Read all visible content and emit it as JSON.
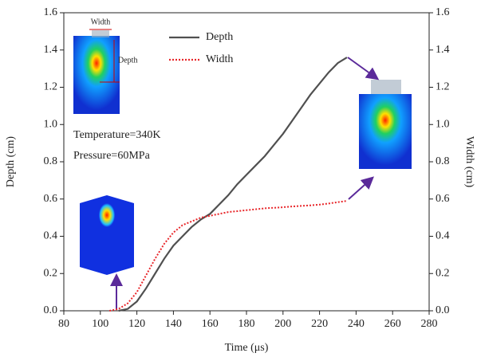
{
  "chart_data": {
    "type": "line",
    "xlabel": "Time (μs)",
    "ylabel": "Depth (cm)",
    "y2label": "Width (cm)",
    "x": [
      105,
      110,
      115,
      120,
      125,
      130,
      135,
      140,
      145,
      150,
      155,
      160,
      165,
      170,
      175,
      180,
      185,
      190,
      195,
      200,
      205,
      210,
      215,
      220,
      225,
      230,
      235
    ],
    "series": [
      {
        "name": "Depth",
        "color": "#505050",
        "style": "solid",
        "values": [
          null,
          0,
          0.01,
          0.05,
          0.12,
          0.2,
          0.28,
          0.35,
          0.4,
          0.45,
          0.49,
          0.52,
          0.57,
          0.62,
          0.68,
          0.73,
          0.78,
          0.83,
          0.89,
          0.95,
          1.02,
          1.09,
          1.16,
          1.22,
          1.28,
          1.33,
          1.36
        ]
      },
      {
        "name": "Width",
        "color": "#e8262a",
        "style": "dotted",
        "axis": "y2",
        "values": [
          0,
          0.01,
          0.04,
          0.1,
          0.19,
          0.28,
          0.36,
          0.42,
          0.46,
          0.48,
          0.5,
          0.51,
          0.52,
          0.53,
          0.535,
          0.54,
          0.545,
          0.55,
          0.553,
          0.556,
          0.56,
          0.563,
          0.566,
          0.57,
          0.576,
          0.583,
          0.59
        ]
      }
    ],
    "xlim": [
      80,
      280
    ],
    "xticks": [
      80,
      100,
      120,
      140,
      160,
      180,
      200,
      220,
      240,
      260,
      280
    ],
    "ylim": [
      0,
      1.6
    ],
    "yticks": [
      {
        "value": 0,
        "label": "0.0"
      },
      0.2,
      0.4,
      0.6,
      0.8,
      {
        "value": 1,
        "label": "1.0"
      },
      1.2,
      1.4,
      1.6
    ],
    "y2lim": [
      0,
      1.6
    ],
    "y2ticks": [
      {
        "value": 0,
        "label": "0.0"
      },
      0.2,
      0.4,
      0.6,
      0.8,
      {
        "value": 1,
        "label": "1.0"
      },
      1.2,
      1.4,
      1.6
    ],
    "legend": "upper center",
    "annotations": [
      "Temperature=340K",
      "Pressure=60MPa",
      "Width",
      "Depth"
    ]
  }
}
